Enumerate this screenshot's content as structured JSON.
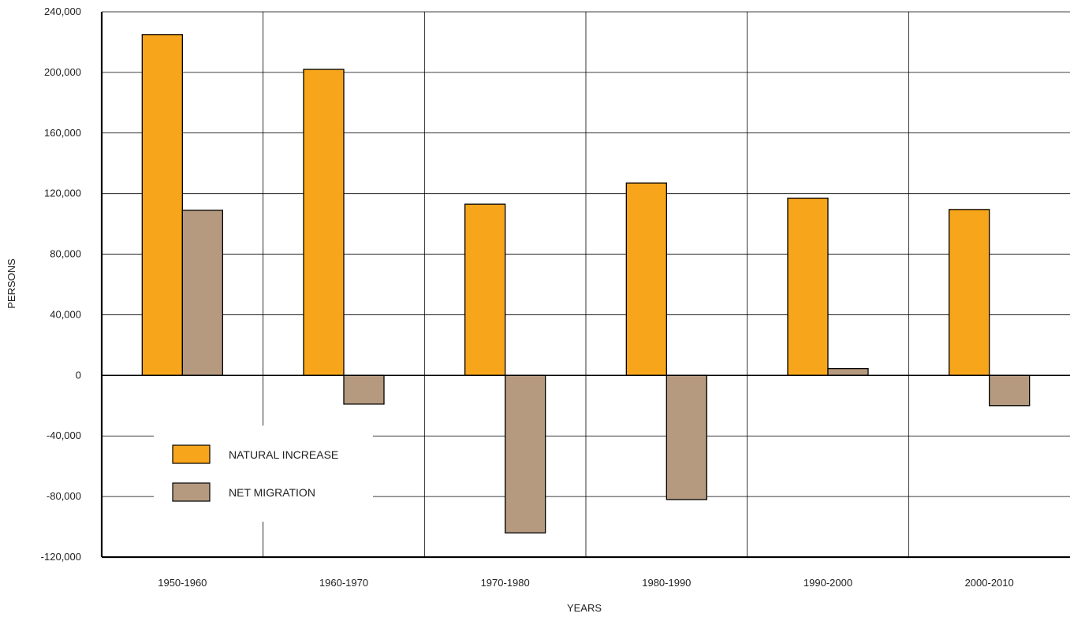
{
  "chart_data": {
    "type": "bar",
    "categories": [
      "1950-1960",
      "1960-1970",
      "1970-1980",
      "1980-1990",
      "1990-2000",
      "2000-2010"
    ],
    "series": [
      {
        "name": "NATURAL INCREASE",
        "values": [
          225000,
          202000,
          113000,
          127000,
          117000,
          109500
        ],
        "color": "#F7A51B"
      },
      {
        "name": "NET MIGRATION",
        "values": [
          109000,
          -19000,
          -104000,
          -82000,
          4500,
          -20000
        ],
        "color": "#B59A80"
      }
    ],
    "title": "",
    "xlabel": "YEARS",
    "ylabel": "PERSONS",
    "ylim": [
      -120000,
      240000
    ],
    "yticks": [
      240000,
      200000,
      160000,
      120000,
      80000,
      40000,
      0,
      -40000,
      -80000,
      -120000
    ],
    "ytick_labels": [
      "240,000",
      "200,000",
      "160,000",
      "120,000",
      "80,000",
      "40,000",
      "0",
      "-40,000",
      "-80,000",
      "-120,000"
    ],
    "grid": true,
    "legend_position": "lower-left"
  }
}
